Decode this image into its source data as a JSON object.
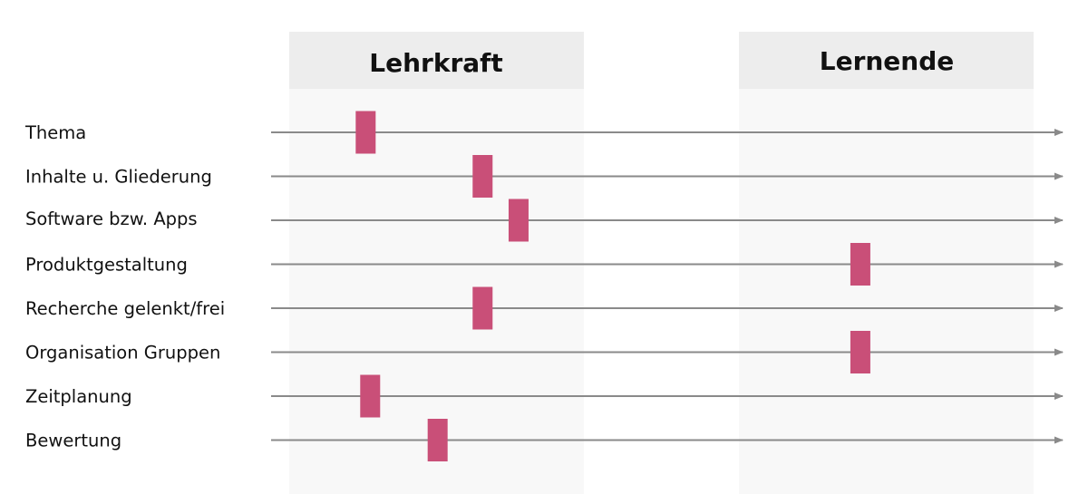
{
  "columns": [
    {
      "title": "Lehrkraft"
    },
    {
      "title": "Lernende"
    }
  ],
  "colors": {
    "panel": "#f8f8f8",
    "header": "#ededed",
    "line": "#8a8a8a",
    "marker": "#c94f78"
  },
  "scale": {
    "lehrkraft": 0,
    "lernende": 1
  },
  "rows": [
    {
      "label": "Thema",
      "value": 0.17
    },
    {
      "label": "Inhalte u. Gliederung",
      "value": 0.43
    },
    {
      "label": "Software bzw. Apps",
      "value": 0.51
    },
    {
      "label": "Produktgestaltung",
      "value": 1.27
    },
    {
      "label": "Recherche gelenkt/frei",
      "value": 0.43
    },
    {
      "label": "Organisation Gruppen",
      "value": 1.27
    },
    {
      "label": "Zeitplanung",
      "value": 0.18
    },
    {
      "label": "Bewertung",
      "value": 0.33
    }
  ]
}
